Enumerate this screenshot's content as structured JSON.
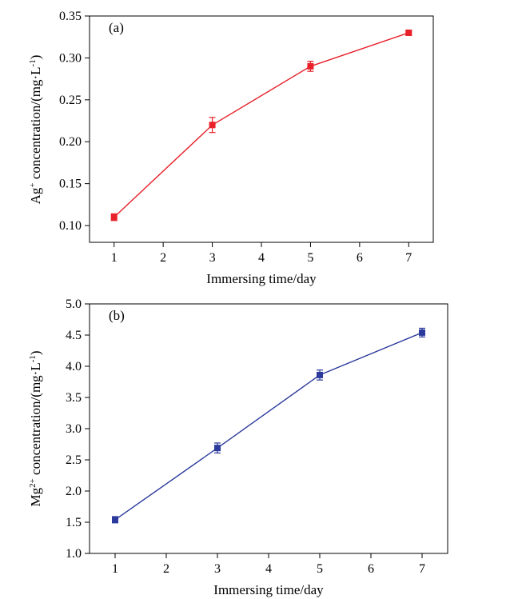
{
  "chart_data": [
    {
      "type": "line",
      "panel_label": "(a)",
      "xlabel": "Immersing time/day",
      "ylabel_main": "Ag",
      "ylabel_sup": "+",
      "ylabel_rest": " concentration/(mg·L",
      "ylabel_unit_sup": "-1",
      "ylabel_end": ")",
      "xlim": [
        0.5,
        7.5
      ],
      "ylim": [
        0.08,
        0.35
      ],
      "xticks": [
        "1",
        "2",
        "3",
        "4",
        "5",
        "6",
        "7"
      ],
      "yticks": [
        "0.10",
        "0.15",
        "0.20",
        "0.25",
        "0.30",
        "0.35"
      ],
      "color": "#e8212a",
      "series": [
        {
          "x": [
            1,
            3,
            5,
            7
          ],
          "values": [
            0.11,
            0.22,
            0.29,
            0.33
          ],
          "error": [
            0.004,
            0.009,
            0.006,
            0.003
          ]
        }
      ]
    },
    {
      "type": "line",
      "panel_label": "(b)",
      "xlabel": "Immersing time/day",
      "ylabel_main": "Mg",
      "ylabel_sup": "2+",
      "ylabel_rest": " concentration/(mg·L",
      "ylabel_unit_sup": "-1",
      "ylabel_end": ")",
      "xlim": [
        0.5,
        7.5
      ],
      "ylim": [
        1.0,
        5.0
      ],
      "xticks": [
        "1",
        "2",
        "3",
        "4",
        "5",
        "6",
        "7"
      ],
      "yticks": [
        "1.0",
        "1.5",
        "2.0",
        "2.5",
        "3.0",
        "3.5",
        "4.0",
        "4.5",
        "5.0"
      ],
      "color": "#2b3a9c",
      "series": [
        {
          "x": [
            1,
            3,
            5,
            7
          ],
          "values": [
            1.54,
            2.69,
            3.86,
            4.54
          ],
          "error": [
            0.05,
            0.08,
            0.08,
            0.07
          ]
        }
      ]
    }
  ]
}
